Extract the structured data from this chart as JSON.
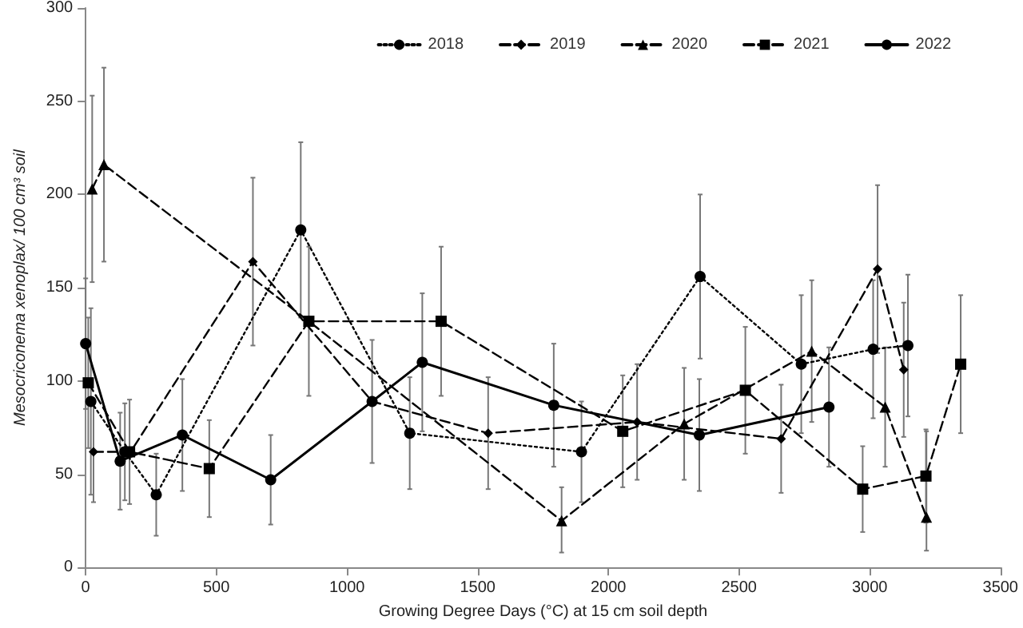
{
  "chart_data": {
    "type": "line",
    "xlabel": "Growing Degree Days (°C) at 15 cm soil depth",
    "ylabel": "Mesocriconema xenoplax/ 100 cm³ soil",
    "xlim": [
      0,
      3500
    ],
    "xticks": [
      0,
      500,
      1000,
      1500,
      2000,
      2500,
      3000,
      3500
    ],
    "ylim": [
      0,
      300
    ],
    "yticks": [
      0,
      50,
      100,
      150,
      200,
      250,
      300
    ],
    "grid": false,
    "legend": "top right",
    "series": [
      {
        "name": "2018",
        "color": "#000000",
        "line_style": "dotted",
        "marker": "circle",
        "x": [
          20,
          150,
          270,
          823,
          1240,
          1897,
          2351,
          2738,
          3013,
          3146
        ],
        "values": [
          89,
          62,
          39,
          181,
          72,
          62,
          156,
          109,
          117,
          119
        ],
        "errors": [
          50,
          26,
          22,
          47,
          30,
          27,
          44,
          37,
          37,
          38
        ]
      },
      {
        "name": "2019",
        "color": "#000000",
        "line_style": "dashed",
        "marker": "diamond",
        "x": [
          30,
          172,
          640,
          1096,
          1540,
          2110,
          2661,
          3030,
          3130
        ],
        "values": [
          62,
          62,
          164,
          89,
          72,
          78,
          69,
          160,
          106
        ],
        "errors": [
          27,
          null,
          45,
          33,
          30,
          31,
          29,
          45,
          36
        ]
      },
      {
        "name": "2020",
        "color": "#000000",
        "line_style": "dashed",
        "marker": "triangle",
        "x": [
          25,
          70,
          854,
          1821,
          2290,
          2778,
          3059,
          3217
        ],
        "values": [
          203,
          216,
          132,
          25,
          77,
          116,
          86,
          27
        ],
        "errors": [
          50,
          52,
          null,
          [
            8,
            43
          ],
          30,
          38,
          32,
          [
            9,
            73
          ]
        ]
      },
      {
        "name": "2021",
        "color": "#000000",
        "line_style": "dashed",
        "marker": "square",
        "x": [
          10,
          168,
          473,
          854,
          1360,
          2055,
          2524,
          2973,
          3215,
          3348
        ],
        "values": [
          99,
          62,
          53,
          132,
          132,
          73,
          95,
          42,
          49,
          109
        ],
        "errors": [
          35,
          28,
          26,
          40,
          40,
          30,
          34,
          23,
          25,
          37
        ]
      },
      {
        "name": "2022",
        "color": "#000000",
        "line_style": "solid",
        "marker": "circle",
        "x": [
          0,
          132,
          370,
          708,
          1096,
          1288,
          1791,
          2348,
          2844
        ],
        "values": [
          120,
          57,
          71,
          47,
          89,
          110,
          87,
          71,
          86
        ],
        "errors": [
          35,
          26,
          30,
          24,
          null,
          37,
          33,
          30,
          32
        ]
      }
    ]
  }
}
